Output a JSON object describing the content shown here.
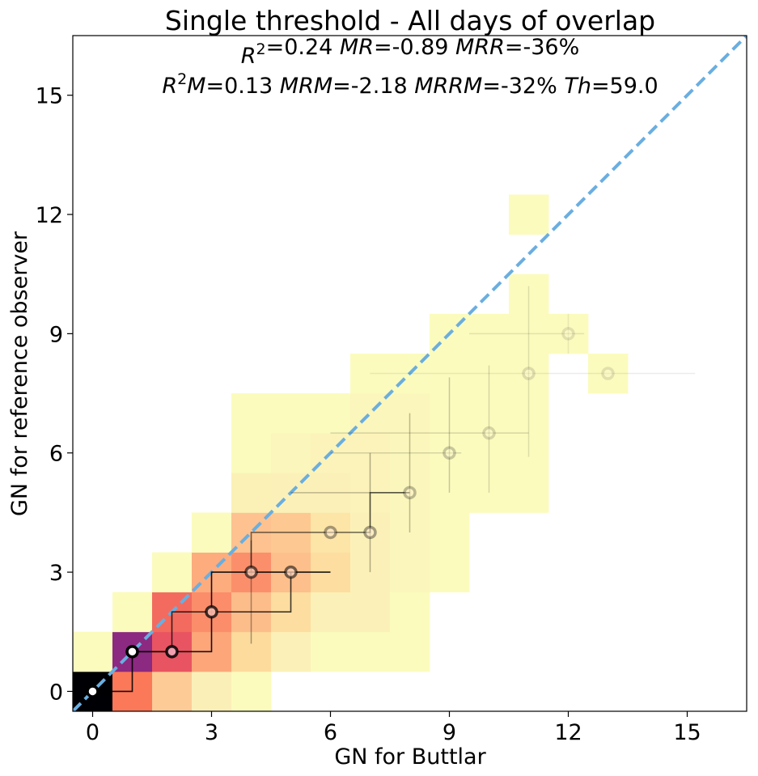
{
  "chart_data": {
    "type": "heatmap",
    "title": "Single threshold - All days of overlap",
    "stats_line1": [
      {
        "var": "R",
        "sup": "2",
        "val": "=0.24 "
      },
      {
        "var": "MR",
        "val": "=-0.89 "
      },
      {
        "var": "MRR",
        "val": "=-36%"
      }
    ],
    "stats_line2": [
      {
        "var": "R",
        "sup": "2",
        "var2": "M",
        "val": "=0.13 "
      },
      {
        "var": "MRM",
        "val": "=-2.18 "
      },
      {
        "var": "MRRM",
        "val": "=-32% "
      },
      {
        "var": "Th",
        "val": "=59.0"
      }
    ],
    "xlabel": "GN for Buttlar",
    "ylabel": "GN for reference observer",
    "xlim": [
      -0.5,
      16.5
    ],
    "ylim": [
      -0.5,
      16.5
    ],
    "xticks": [
      0,
      3,
      6,
      9,
      12,
      15
    ],
    "yticks": [
      0,
      3,
      6,
      9,
      12,
      15
    ],
    "identity_line_color": "#6aaee0",
    "cells": [
      {
        "x": 0,
        "y": 0,
        "color": "#000004"
      },
      {
        "x": 1,
        "y": 0,
        "color": "#fb7959"
      },
      {
        "x": 2,
        "y": 0,
        "color": "#fdcb96"
      },
      {
        "x": 3,
        "y": 0,
        "color": "#fbefb8"
      },
      {
        "x": 4,
        "y": 0,
        "color": "#fbfbbe"
      },
      {
        "x": 0,
        "y": 1,
        "color": "#fbfbbe"
      },
      {
        "x": 1,
        "y": 1,
        "color": "#8c2981"
      },
      {
        "x": 2,
        "y": 1,
        "color": "#e95462"
      },
      {
        "x": 3,
        "y": 1,
        "color": "#fda67a"
      },
      {
        "x": 4,
        "y": 1,
        "color": "#fddb9d"
      },
      {
        "x": 5,
        "y": 1,
        "color": "#fbf1b8"
      },
      {
        "x": 6,
        "y": 1,
        "color": "#fbfbbe"
      },
      {
        "x": 7,
        "y": 1,
        "color": "#fbfbbe"
      },
      {
        "x": 8,
        "y": 1,
        "color": "#fbfbbe"
      },
      {
        "x": 1,
        "y": 2,
        "color": "#fbfbbe"
      },
      {
        "x": 2,
        "y": 2,
        "color": "#f26b5e"
      },
      {
        "x": 3,
        "y": 2,
        "color": "#fc8d6a"
      },
      {
        "x": 4,
        "y": 2,
        "color": "#fdbd8a"
      },
      {
        "x": 5,
        "y": 2,
        "color": "#fddda0"
      },
      {
        "x": 6,
        "y": 2,
        "color": "#fbf1b8"
      },
      {
        "x": 7,
        "y": 2,
        "color": "#fbf1b8"
      },
      {
        "x": 8,
        "y": 2,
        "color": "#fbfbbe"
      },
      {
        "x": 2,
        "y": 3,
        "color": "#fbfbbe"
      },
      {
        "x": 3,
        "y": 3,
        "color": "#fdac7e"
      },
      {
        "x": 4,
        "y": 3,
        "color": "#fc8f6b"
      },
      {
        "x": 5,
        "y": 3,
        "color": "#fdbf8b"
      },
      {
        "x": 6,
        "y": 3,
        "color": "#fddda0"
      },
      {
        "x": 7,
        "y": 3,
        "color": "#fbf1b8"
      },
      {
        "x": 8,
        "y": 3,
        "color": "#fbf6bb"
      },
      {
        "x": 9,
        "y": 3,
        "color": "#fbfbbe"
      },
      {
        "x": 3,
        "y": 4,
        "color": "#fbfbbe"
      },
      {
        "x": 4,
        "y": 4,
        "color": "#fdc28f"
      },
      {
        "x": 5,
        "y": 4,
        "color": "#fdc891"
      },
      {
        "x": 6,
        "y": 4,
        "color": "#fde4a7"
      },
      {
        "x": 7,
        "y": 4,
        "color": "#fbf1b8"
      },
      {
        "x": 8,
        "y": 4,
        "color": "#fbf6bb"
      },
      {
        "x": 9,
        "y": 4,
        "color": "#fbfbbe"
      },
      {
        "x": 4,
        "y": 5,
        "color": "#fbf0b6"
      },
      {
        "x": 5,
        "y": 5,
        "color": "#fbf1b8"
      },
      {
        "x": 6,
        "y": 5,
        "color": "#fbf1b8"
      },
      {
        "x": 7,
        "y": 5,
        "color": "#fbf3b9"
      },
      {
        "x": 8,
        "y": 5,
        "color": "#fbf6bb"
      },
      {
        "x": 9,
        "y": 5,
        "color": "#fbfbbe"
      },
      {
        "x": 10,
        "y": 5,
        "color": "#fbfbbe"
      },
      {
        "x": 11,
        "y": 5,
        "color": "#fbfbbe"
      },
      {
        "x": 4,
        "y": 6,
        "color": "#fbfbbe"
      },
      {
        "x": 5,
        "y": 6,
        "color": "#fbf6bb"
      },
      {
        "x": 6,
        "y": 6,
        "color": "#fbf3b9"
      },
      {
        "x": 7,
        "y": 6,
        "color": "#fbf3b9"
      },
      {
        "x": 8,
        "y": 6,
        "color": "#fbf6bb"
      },
      {
        "x": 9,
        "y": 6,
        "color": "#fbfbbe"
      },
      {
        "x": 10,
        "y": 6,
        "color": "#fbfbbe"
      },
      {
        "x": 11,
        "y": 6,
        "color": "#fbfbbe"
      },
      {
        "x": 4,
        "y": 7,
        "color": "#fbfbbe"
      },
      {
        "x": 5,
        "y": 7,
        "color": "#fbfbbe"
      },
      {
        "x": 6,
        "y": 7,
        "color": "#fbfbbe"
      },
      {
        "x": 7,
        "y": 7,
        "color": "#fbf6bb"
      },
      {
        "x": 8,
        "y": 7,
        "color": "#fbf6bb"
      },
      {
        "x": 9,
        "y": 7,
        "color": "#fbfbbe"
      },
      {
        "x": 10,
        "y": 7,
        "color": "#fbfbbe"
      },
      {
        "x": 11,
        "y": 7,
        "color": "#fbfbbe"
      },
      {
        "x": 7,
        "y": 8,
        "color": "#fbfbbe"
      },
      {
        "x": 8,
        "y": 8,
        "color": "#fbfbbe"
      },
      {
        "x": 9,
        "y": 8,
        "color": "#fbfbbe"
      },
      {
        "x": 10,
        "y": 8,
        "color": "#fbfbbe"
      },
      {
        "x": 11,
        "y": 8,
        "color": "#fbfbbe"
      },
      {
        "x": 13,
        "y": 8,
        "color": "#fbfbbe"
      },
      {
        "x": 9,
        "y": 9,
        "color": "#fbfbbe"
      },
      {
        "x": 10,
        "y": 9,
        "color": "#fbfbbe"
      },
      {
        "x": 11,
        "y": 9,
        "color": "#fbfbbe"
      },
      {
        "x": 12,
        "y": 9,
        "color": "#fbfbbe"
      },
      {
        "x": 11,
        "y": 10,
        "color": "#fbfbbe"
      },
      {
        "x": 11,
        "y": 12,
        "color": "#fbfbbe"
      }
    ],
    "step_path": [
      [
        0,
        0
      ],
      [
        1,
        0
      ],
      [
        1,
        1
      ],
      [
        2,
        1
      ],
      [
        3,
        1
      ],
      [
        3,
        3
      ],
      [
        4,
        3
      ],
      [
        5,
        3
      ],
      [
        6,
        3
      ]
    ],
    "step_path2": [
      [
        1,
        1
      ],
      [
        2,
        1
      ],
      [
        2,
        2
      ],
      [
        5,
        2
      ],
      [
        5,
        3
      ]
    ],
    "step_path3": [
      [
        4,
        3
      ],
      [
        4,
        4
      ],
      [
        7,
        4
      ],
      [
        7,
        5
      ],
      [
        8,
        5
      ]
    ],
    "hbars": [
      {
        "y": 5,
        "x1": 5,
        "x2": 8,
        "alpha": 0.25
      },
      {
        "y": 6,
        "x1": 6,
        "x2": 9.3,
        "alpha": 0.15
      },
      {
        "y": 6.5,
        "x1": 6,
        "x2": 11,
        "alpha": 0.15
      },
      {
        "y": 8,
        "x1": 7,
        "x2": 15.2,
        "alpha": 0.08
      },
      {
        "y": 9,
        "x1": 9.5,
        "x2": 12.4,
        "alpha": 0.1
      }
    ],
    "vbars": [
      {
        "x": 4,
        "y1": 1.2,
        "y2": 3.8,
        "alpha": 0.35
      },
      {
        "x": 7,
        "y1": 3,
        "y2": 6,
        "alpha": 0.3
      },
      {
        "x": 8,
        "y1": 4,
        "y2": 7,
        "alpha": 0.25
      },
      {
        "x": 9,
        "y1": 5,
        "y2": 7.9,
        "alpha": 0.2
      },
      {
        "x": 10,
        "y1": 5,
        "y2": 8.2,
        "alpha": 0.15
      },
      {
        "x": 11,
        "y1": 5.9,
        "y2": 10.2,
        "alpha": 0.12
      },
      {
        "x": 12,
        "y1": 8.5,
        "y2": 9.5,
        "alpha": 0.08
      }
    ],
    "points": [
      {
        "x": 0,
        "y": 0,
        "alpha": 1.0,
        "fill": "#ffffff",
        "stroke": "#000000"
      },
      {
        "x": 1,
        "y": 1,
        "alpha": 1.0,
        "fill": "#ffffff",
        "stroke": "#000000"
      },
      {
        "x": 2,
        "y": 1,
        "alpha": 0.85,
        "fill": "#f0a0b0",
        "stroke": "#000000"
      },
      {
        "x": 3,
        "y": 2,
        "alpha": 0.75,
        "fill": "#f8b6a8",
        "stroke": "#000000"
      },
      {
        "x": 4,
        "y": 3,
        "alpha": 0.6,
        "fill": "#f8c7b0",
        "stroke": "#000000"
      },
      {
        "x": 5,
        "y": 3,
        "alpha": 0.55,
        "fill": "#f8d0b8",
        "stroke": "#000000"
      },
      {
        "x": 6,
        "y": 4,
        "alpha": 0.35,
        "fill": "#fbe7cc",
        "stroke": "#000000"
      },
      {
        "x": 7,
        "y": 4,
        "alpha": 0.35,
        "fill": "#fbe7cc",
        "stroke": "#000000"
      },
      {
        "x": 8,
        "y": 5,
        "alpha": 0.25,
        "fill": "#fbf0c8",
        "stroke": "#000000"
      },
      {
        "x": 9,
        "y": 6,
        "alpha": 0.2,
        "fill": "#fbf6cc",
        "stroke": "#000000"
      },
      {
        "x": 10,
        "y": 6.5,
        "alpha": 0.15,
        "fill": "#fbf6cc",
        "stroke": "#000000"
      },
      {
        "x": 11,
        "y": 8,
        "alpha": 0.12,
        "fill": "#fbf6cc",
        "stroke": "#000000"
      },
      {
        "x": 12,
        "y": 9,
        "alpha": 0.1,
        "fill": "#fbf6cc",
        "stroke": "#000000"
      },
      {
        "x": 13,
        "y": 8,
        "alpha": 0.1,
        "fill": "#fbf6cc",
        "stroke": "#000000"
      }
    ]
  }
}
